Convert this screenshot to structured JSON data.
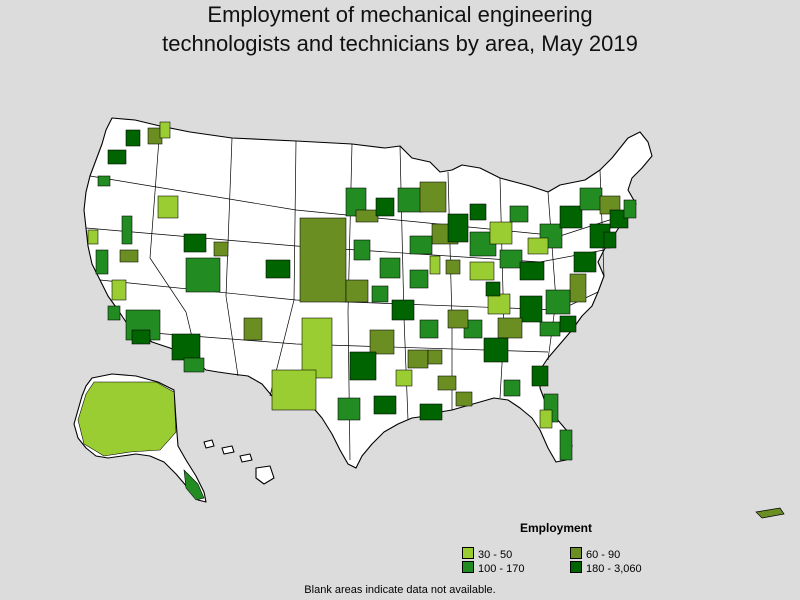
{
  "title": {
    "line1": "Employment of mechanical engineering",
    "line2": "technologists and technicians by area, May 2019"
  },
  "legend": {
    "heading": "Employment",
    "items": [
      {
        "label": "30 - 50",
        "color": "#9acd32"
      },
      {
        "label": "60 - 90",
        "color": "#6b8e23"
      },
      {
        "label": "100 - 170",
        "color": "#228b22"
      },
      {
        "label": "180 - 3,060",
        "color": "#006400"
      }
    ]
  },
  "note": "Blank areas indicate data not available.",
  "colors": {
    "no_data": "#ffffff",
    "background": "#dcdcdc"
  }
}
